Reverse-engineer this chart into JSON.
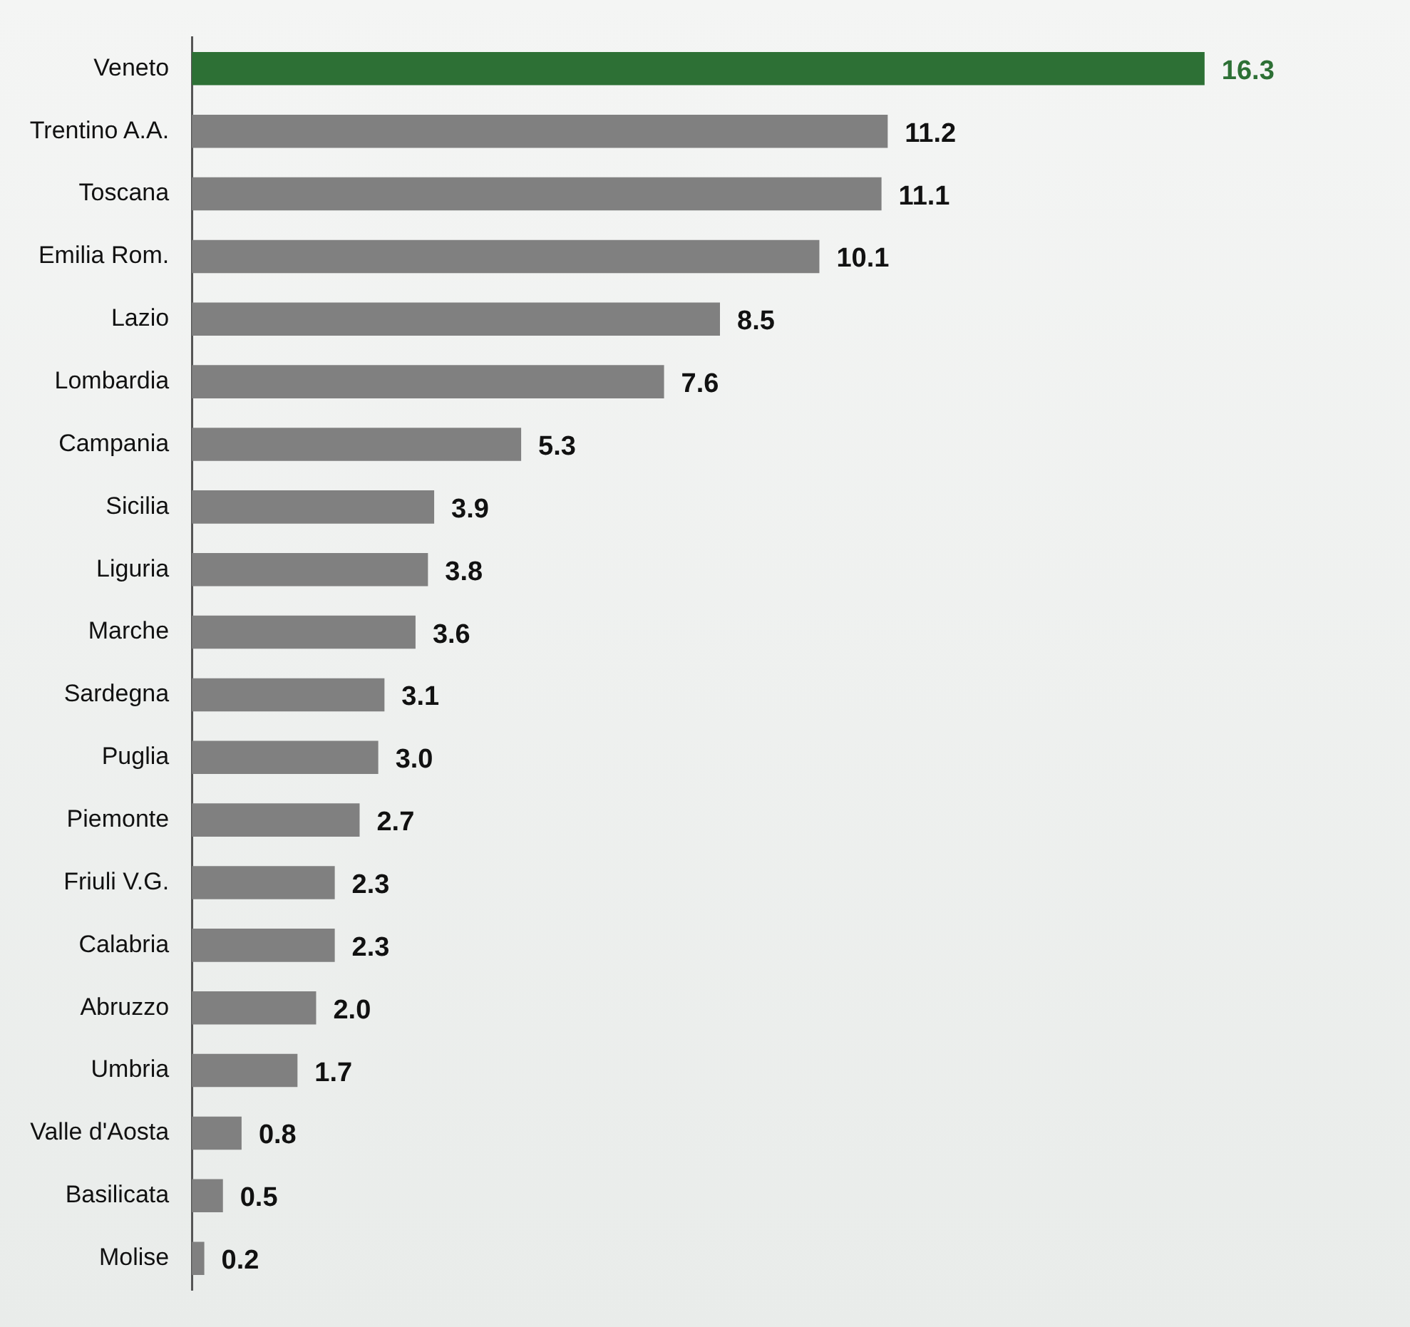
{
  "chart_data": {
    "type": "bar",
    "orientation": "horizontal",
    "categories": [
      "Veneto",
      "Trentino A.A.",
      "Toscana",
      "Emilia Rom.",
      "Lazio",
      "Lombardia",
      "Campania",
      "Sicilia",
      "Liguria",
      "Marche",
      "Sardegna",
      "Puglia",
      "Piemonte",
      "Friuli V.G.",
      "Calabria",
      "Abruzzo",
      "Umbria",
      "Valle d'Aosta",
      "Basilicata",
      "Molise"
    ],
    "values": [
      16.3,
      11.2,
      11.1,
      10.1,
      8.5,
      7.6,
      5.3,
      3.9,
      3.8,
      3.6,
      3.1,
      3.0,
      2.7,
      2.3,
      2.3,
      2.0,
      1.7,
      0.8,
      0.5,
      0.2
    ],
    "colors": [
      "#2d7035",
      "#808080",
      "#808080",
      "#808080",
      "#808080",
      "#808080",
      "#808080",
      "#808080",
      "#808080",
      "#808080",
      "#808080",
      "#808080",
      "#808080",
      "#808080",
      "#808080",
      "#808080",
      "#808080",
      "#808080",
      "#808080",
      "#808080"
    ],
    "value_labels": [
      "16.3",
      "11.2",
      "11.1",
      "10.1",
      "8.5",
      "7.6",
      "5.3",
      "3.9",
      "3.8",
      "3.6",
      "3.1",
      "3.0",
      "2.7",
      "2.3",
      "2.3",
      "2.0",
      "1.7",
      "0.8",
      "0.5",
      "0.2"
    ],
    "grid": false,
    "legend": false,
    "tick_labels": "y"
  }
}
